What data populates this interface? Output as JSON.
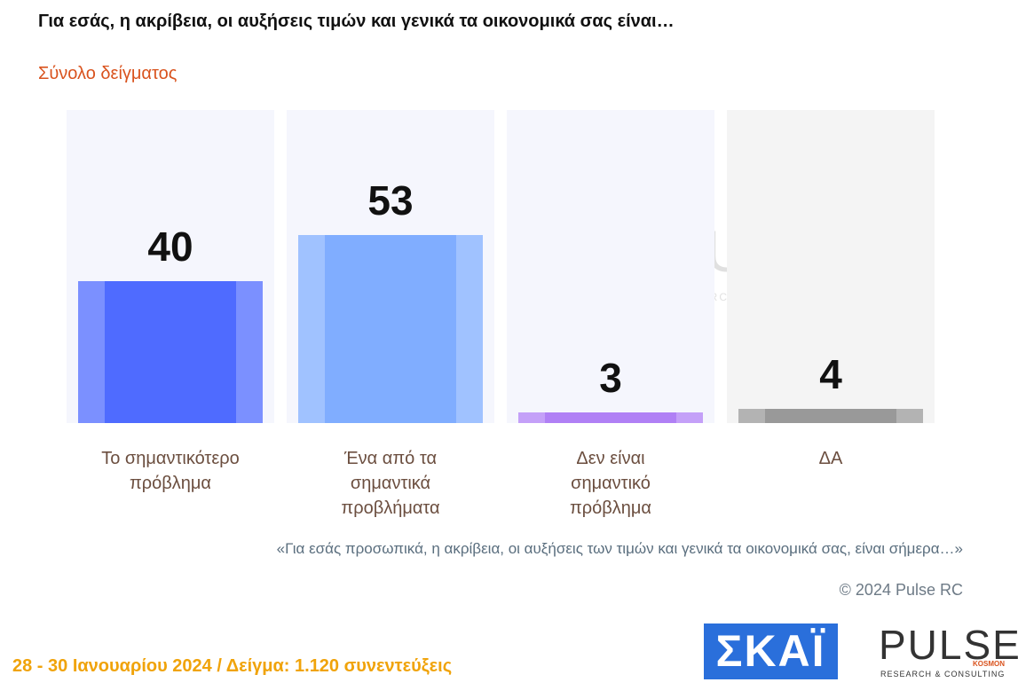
{
  "chart_data": {
    "type": "bar",
    "title": "Για εσάς, η ακρίβεια, οι αυξήσεις τιμών και γενικά τα οικονομικά σας είναι…",
    "subtitle": "Σύνολο δείγματος",
    "categories": [
      "Το σημαντικότερο πρόβλημα",
      "Ένα από τα σημαντικά προβλήματα",
      "Δεν είναι σημαντικό πρόβλημα",
      "ΔΑ"
    ],
    "values": [
      40,
      53,
      3,
      4
    ],
    "colors": [
      "#4f6bff",
      "#80adff",
      "#b080f5",
      "#999999"
    ],
    "note": "«Για εσάς προσωπικά, η ακρίβεια, οι αυξήσεις των τιμών και γενικά τα οικονομικά σας, είναι σήμερα…»"
  },
  "page": {
    "copyright": "© 2024 Pulse RC",
    "footer": "28 - 30  Ιανουαρίου  2024  /  Δείγμα:  1.120 συνεντεύξεις",
    "skai_logo": "ΣΚΑΪ",
    "pulse_logo": "PULSE",
    "kosmon": "KOSMON",
    "pulse_tagline": "RESEARCH & CONSULTING"
  }
}
